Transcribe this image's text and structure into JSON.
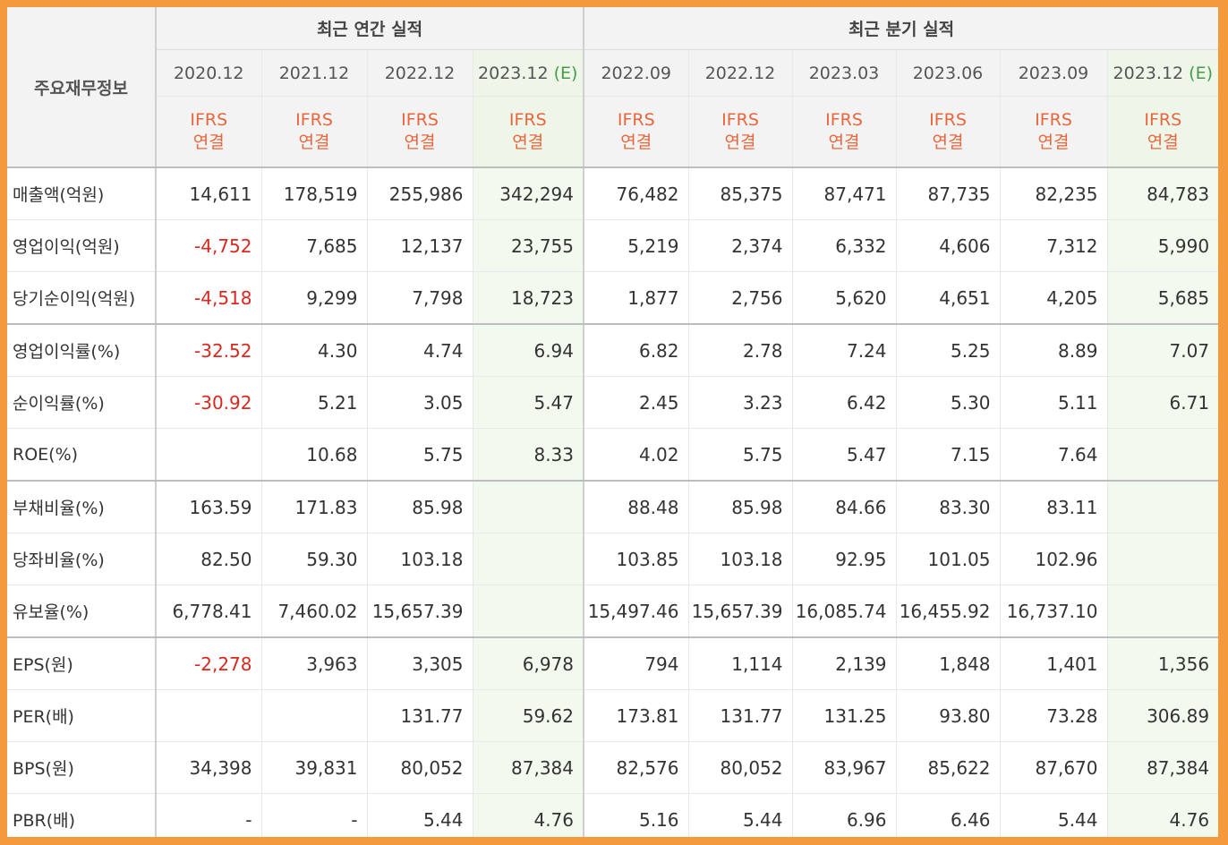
{
  "table": {
    "corner_label": "주요재무정보",
    "annual_group_label": "최근 연간 실적",
    "quarter_group_label": "최근 분기 실적",
    "annual_periods": [
      {
        "date": "2020.12",
        "est": "",
        "ifrs": "IFRS",
        "basis": "연결"
      },
      {
        "date": "2021.12",
        "est": "",
        "ifrs": "IFRS",
        "basis": "연결"
      },
      {
        "date": "2022.12",
        "est": "",
        "ifrs": "IFRS",
        "basis": "연결"
      },
      {
        "date": "2023.12",
        "est": "(E)",
        "ifrs": "IFRS",
        "basis": "연결"
      }
    ],
    "quarter_periods": [
      {
        "date": "2022.09",
        "est": "",
        "ifrs": "IFRS",
        "basis": "연결"
      },
      {
        "date": "2022.12",
        "est": "",
        "ifrs": "IFRS",
        "basis": "연결"
      },
      {
        "date": "2023.03",
        "est": "",
        "ifrs": "IFRS",
        "basis": "연결"
      },
      {
        "date": "2023.06",
        "est": "",
        "ifrs": "IFRS",
        "basis": "연결"
      },
      {
        "date": "2023.09",
        "est": "",
        "ifrs": "IFRS",
        "basis": "연결"
      },
      {
        "date": "2023.12",
        "est": "(E)",
        "ifrs": "IFRS",
        "basis": "연결"
      }
    ],
    "rows": [
      {
        "label": "매출액(억원)",
        "values": [
          "14,611",
          "178,519",
          "255,986",
          "342,294",
          "76,482",
          "85,375",
          "87,471",
          "87,735",
          "82,235",
          "84,783"
        ]
      },
      {
        "label": "영업이익(억원)",
        "values": [
          "-4,752",
          "7,685",
          "12,137",
          "23,755",
          "5,219",
          "2,374",
          "6,332",
          "4,606",
          "7,312",
          "5,990"
        ]
      },
      {
        "label": "당기순이익(억원)",
        "values": [
          "-4,518",
          "9,299",
          "7,798",
          "18,723",
          "1,877",
          "2,756",
          "5,620",
          "4,651",
          "4,205",
          "5,685"
        ]
      },
      {
        "label": "영업이익률(%)",
        "values": [
          "-32.52",
          "4.30",
          "4.74",
          "6.94",
          "6.82",
          "2.78",
          "7.24",
          "5.25",
          "8.89",
          "7.07"
        ]
      },
      {
        "label": "순이익률(%)",
        "values": [
          "-30.92",
          "5.21",
          "3.05",
          "5.47",
          "2.45",
          "3.23",
          "6.42",
          "5.30",
          "5.11",
          "6.71"
        ]
      },
      {
        "label": "ROE(%)",
        "values": [
          "",
          "10.68",
          "5.75",
          "8.33",
          "4.02",
          "5.75",
          "5.47",
          "7.15",
          "7.64",
          ""
        ]
      },
      {
        "label": "부채비율(%)",
        "values": [
          "163.59",
          "171.83",
          "85.98",
          "",
          "88.48",
          "85.98",
          "84.66",
          "83.30",
          "83.11",
          ""
        ]
      },
      {
        "label": "당좌비율(%)",
        "values": [
          "82.50",
          "59.30",
          "103.18",
          "",
          "103.85",
          "103.18",
          "92.95",
          "101.05",
          "102.96",
          ""
        ]
      },
      {
        "label": "유보율(%)",
        "values": [
          "6,778.41",
          "7,460.02",
          "15,657.39",
          "",
          "15,497.46",
          "15,657.39",
          "16,085.74",
          "16,455.92",
          "16,737.10",
          ""
        ]
      },
      {
        "label": "EPS(원)",
        "values": [
          "-2,278",
          "3,963",
          "3,305",
          "6,978",
          "794",
          "1,114",
          "2,139",
          "1,848",
          "1,401",
          "1,356"
        ]
      },
      {
        "label": "PER(배)",
        "values": [
          "",
          "",
          "131.77",
          "59.62",
          "173.81",
          "131.77",
          "131.25",
          "93.80",
          "73.28",
          "306.89"
        ]
      },
      {
        "label": "BPS(원)",
        "values": [
          "34,398",
          "39,831",
          "80,052",
          "87,384",
          "82,576",
          "80,052",
          "83,967",
          "85,622",
          "87,670",
          "87,384"
        ]
      },
      {
        "label": "PBR(배)",
        "values": [
          "-",
          "-",
          "5.44",
          "4.76",
          "5.16",
          "5.44",
          "6.96",
          "6.46",
          "5.44",
          "4.76"
        ]
      }
    ],
    "negative_color": "#d8281f",
    "ifrs_color": "#e8663b",
    "estimate_mark_color": "#4a9a45",
    "estimate_column_bg": "#f2f9ee"
  }
}
